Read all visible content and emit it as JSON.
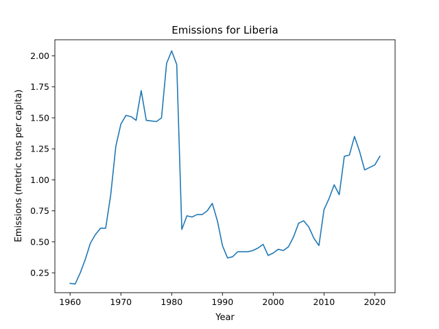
{
  "chart_data": {
    "type": "line",
    "title": "Emissions for Liberia",
    "xlabel": "Year",
    "ylabel": "Emissions (metric tons per capita)",
    "xlim": [
      1957.0,
      2024.0
    ],
    "ylim": [
      0.09,
      2.13
    ],
    "xticks": [
      1960,
      1970,
      1980,
      1990,
      2000,
      2010,
      2020
    ],
    "yticks": [
      0.25,
      0.5,
      0.75,
      1.0,
      1.25,
      1.5,
      1.75,
      2.0
    ],
    "ytick_labels": [
      "0.25",
      "0.50",
      "0.75",
      "1.00",
      "1.25",
      "1.50",
      "1.75",
      "2.00"
    ],
    "grid": false,
    "line_color": "#1f77b4",
    "series": [
      {
        "x": [
          1960,
          1961,
          1962,
          1963,
          1964,
          1965,
          1966,
          1967,
          1968,
          1969,
          1970,
          1971,
          1972,
          1973,
          1974,
          1975,
          1976,
          1977,
          1978,
          1979,
          1980,
          1981,
          1982,
          1983,
          1984,
          1985,
          1986,
          1987,
          1988,
          1989,
          1990,
          1991,
          1992,
          1993,
          1994,
          1995,
          1996,
          1997,
          1998,
          1999,
          2000,
          2001,
          2002,
          2003,
          2004,
          2005,
          2006,
          2007,
          2008,
          2009,
          2010,
          2011,
          2012,
          2013,
          2014,
          2015,
          2016,
          2017,
          2018,
          2019,
          2020,
          2021
        ],
        "y": [
          0.165,
          0.16,
          0.25,
          0.36,
          0.49,
          0.56,
          0.61,
          0.61,
          0.88,
          1.27,
          1.45,
          1.52,
          1.51,
          1.48,
          1.72,
          1.48,
          1.475,
          1.47,
          1.5,
          1.94,
          2.04,
          1.93,
          0.6,
          0.71,
          0.7,
          0.72,
          0.72,
          0.75,
          0.81,
          0.67,
          0.47,
          0.37,
          0.38,
          0.42,
          0.42,
          0.42,
          0.43,
          0.45,
          0.48,
          0.39,
          0.41,
          0.44,
          0.43,
          0.46,
          0.54,
          0.65,
          0.67,
          0.62,
          0.53,
          0.47,
          0.76,
          0.85,
          0.96,
          0.88,
          1.19,
          1.2,
          1.35,
          1.23,
          1.08,
          1.1,
          1.12,
          1.19
        ]
      }
    ]
  }
}
